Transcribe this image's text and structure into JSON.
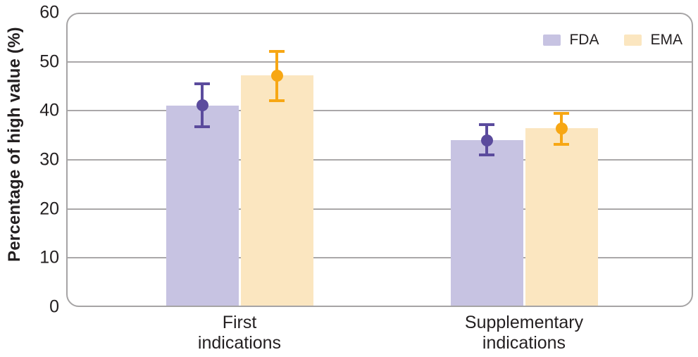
{
  "chart_data": {
    "type": "bar",
    "title": "",
    "ylabel": "Percentage of high value (%)",
    "xlabel": "",
    "ylim": [
      0,
      60
    ],
    "yticks": [
      0,
      10,
      20,
      30,
      40,
      50,
      60
    ],
    "grid": true,
    "legend_position": "top-right-inside",
    "categories": [
      "First\nindications",
      "Supplementary\nindications"
    ],
    "series": [
      {
        "name": "FDA",
        "bar_fill": "#c7c3e2",
        "accent": "#5b4b9d",
        "values": [
          41.1,
          34.0
        ],
        "ci_low": [
          36.4,
          30.7
        ],
        "ci_high": [
          45.8,
          37.4
        ]
      },
      {
        "name": "EMA",
        "bar_fill": "#fbe6c0",
        "accent": "#f7a714",
        "values": [
          47.2,
          36.4
        ],
        "ci_low": [
          41.8,
          32.9
        ],
        "ci_high": [
          52.4,
          39.8
        ]
      }
    ],
    "colors": {
      "grid": "#aaa8a9",
      "plot_border": "#a6a4a5",
      "text": "#231f20",
      "background": "#ffffff"
    }
  }
}
